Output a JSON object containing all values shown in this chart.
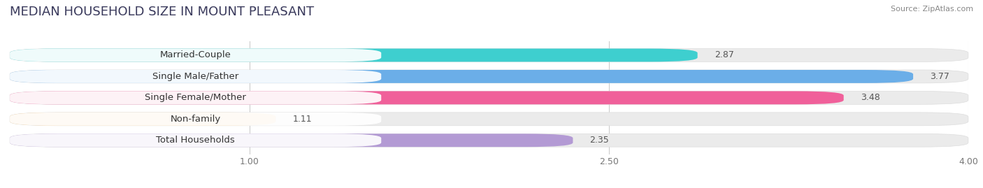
{
  "title": "MEDIAN HOUSEHOLD SIZE IN MOUNT PLEASANT",
  "source": "Source: ZipAtlas.com",
  "categories": [
    "Married-Couple",
    "Single Male/Father",
    "Single Female/Mother",
    "Non-family",
    "Total Households"
  ],
  "values": [
    2.87,
    3.77,
    3.48,
    1.11,
    2.35
  ],
  "bar_colors": [
    "#3ecfcf",
    "#6baee8",
    "#f0609a",
    "#f5c98a",
    "#b39ad4"
  ],
  "xlim_data": [
    0,
    4.0
  ],
  "xticks": [
    1.0,
    2.5,
    4.0
  ],
  "xtick_labels": [
    "1.00",
    "2.50",
    "4.00"
  ],
  "bar_height": 0.62,
  "bg_color": "#ffffff",
  "bar_bg_color": "#ebebeb",
  "label_fontsize": 9.5,
  "value_fontsize": 9,
  "title_fontsize": 13,
  "title_color": "#3a3a5c"
}
